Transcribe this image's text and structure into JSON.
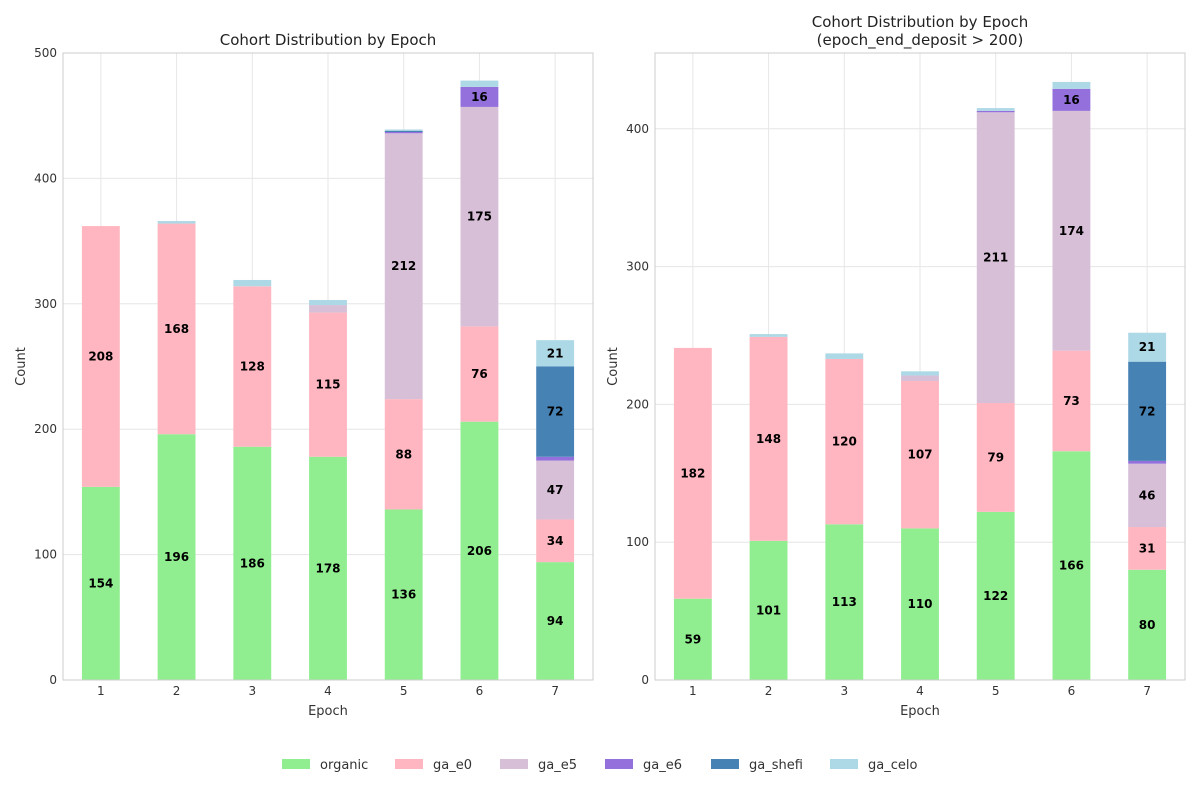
{
  "cohorts": [
    {
      "name": "organic",
      "color": "#90EE90"
    },
    {
      "name": "ga_e0",
      "color": "#FFB6C1"
    },
    {
      "name": "ga_e5",
      "color": "#D8BFD8"
    },
    {
      "name": "ga_e6",
      "color": "#9370DB"
    },
    {
      "name": "ga_shefi",
      "color": "#4682B4"
    },
    {
      "name": "ga_celo",
      "color": "#ADD8E6"
    }
  ],
  "chart_data": [
    {
      "type": "bar",
      "stacked": true,
      "title": "Cohort Distribution by Epoch",
      "subtitle": "",
      "xlabel": "Epoch",
      "ylabel": "Count",
      "categories": [
        "1",
        "2",
        "3",
        "4",
        "5",
        "6",
        "7"
      ],
      "ylim": [
        0,
        500
      ],
      "yticks": [
        0,
        100,
        200,
        300,
        400,
        500
      ],
      "series": [
        {
          "name": "organic",
          "values": [
            154,
            196,
            186,
            178,
            136,
            206,
            94
          ]
        },
        {
          "name": "ga_e0",
          "values": [
            208,
            168,
            128,
            115,
            88,
            76,
            34
          ]
        },
        {
          "name": "ga_e5",
          "values": [
            0,
            0,
            0,
            6,
            212,
            175,
            47
          ]
        },
        {
          "name": "ga_e6",
          "values": [
            0,
            0,
            0,
            0,
            1,
            16,
            3
          ]
        },
        {
          "name": "ga_shefi",
          "values": [
            0,
            0,
            0,
            0,
            1,
            0,
            72
          ]
        },
        {
          "name": "ga_celo",
          "values": [
            0,
            2,
            5,
            4,
            1,
            5,
            21
          ]
        }
      ],
      "label_threshold": 10
    },
    {
      "type": "bar",
      "stacked": true,
      "title": "Cohort Distribution by Epoch",
      "subtitle": "(epoch_end_deposit > 200)",
      "xlabel": "Epoch",
      "ylabel": "Count",
      "categories": [
        "1",
        "2",
        "3",
        "4",
        "5",
        "6",
        "7"
      ],
      "ylim": [
        0,
        455
      ],
      "yticks": [
        0,
        100,
        200,
        300,
        400
      ],
      "series": [
        {
          "name": "organic",
          "values": [
            59,
            101,
            113,
            110,
            122,
            166,
            80
          ]
        },
        {
          "name": "ga_e0",
          "values": [
            182,
            148,
            120,
            107,
            79,
            73,
            31
          ]
        },
        {
          "name": "ga_e5",
          "values": [
            0,
            0,
            0,
            4,
            211,
            174,
            46
          ]
        },
        {
          "name": "ga_e6",
          "values": [
            0,
            0,
            0,
            0,
            1,
            16,
            2
          ]
        },
        {
          "name": "ga_shefi",
          "values": [
            0,
            0,
            0,
            0,
            0,
            0,
            72
          ]
        },
        {
          "name": "ga_celo",
          "values": [
            0,
            2,
            4,
            3,
            2,
            5,
            21
          ]
        }
      ],
      "label_threshold": 10
    }
  ]
}
